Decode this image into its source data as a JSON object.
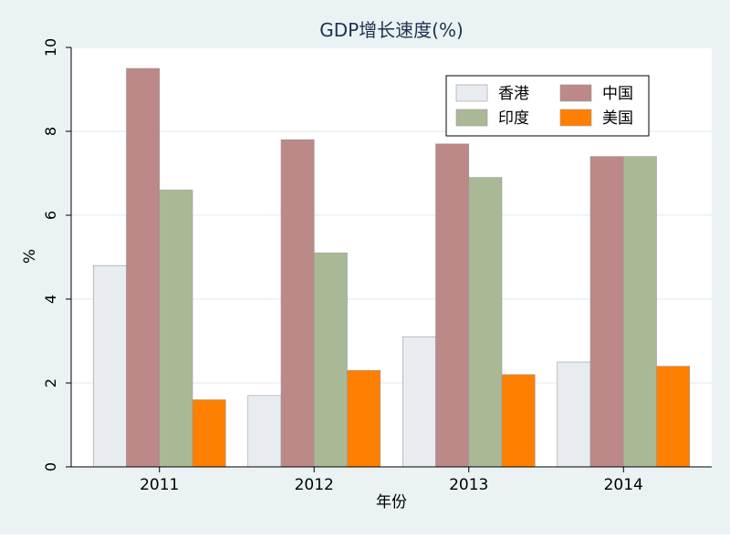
{
  "chart_data": {
    "type": "bar",
    "title": "GDP增长速度(%)",
    "xlabel": "年份",
    "ylabel": "%",
    "categories": [
      "2011",
      "2012",
      "2013",
      "2014"
    ],
    "ylim": [
      0,
      10
    ],
    "yticks": [
      0,
      2,
      4,
      6,
      8,
      10
    ],
    "grid": true,
    "legend_position": "top-right",
    "series": [
      {
        "name": "香港",
        "color": "#e8ecf0",
        "values": [
          4.8,
          1.7,
          3.1,
          2.5
        ]
      },
      {
        "name": "中国",
        "color": "#bd8888",
        "values": [
          9.5,
          7.8,
          7.7,
          7.4
        ]
      },
      {
        "name": "印度",
        "color": "#a9b996",
        "values": [
          6.6,
          5.1,
          6.9,
          7.4
        ]
      },
      {
        "name": "美国",
        "color": "#ff8000",
        "values": [
          1.6,
          2.3,
          2.2,
          2.4
        ]
      }
    ],
    "legend_order": [
      "香港",
      "中国",
      "印度",
      "美国"
    ]
  }
}
